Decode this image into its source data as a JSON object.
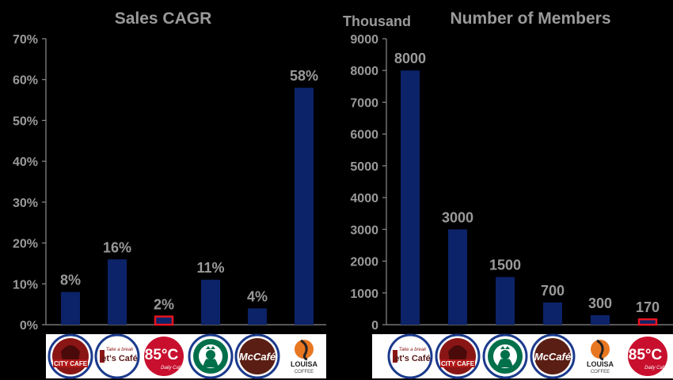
{
  "chart_data": [
    {
      "type": "bar",
      "title": "Sales CAGR",
      "unit": "",
      "categories": [
        "City Cafe",
        "Let's Cafe",
        "85°C",
        "Starbucks",
        "McCafe",
        "Louisa Coffee"
      ],
      "values": [
        8,
        16,
        2,
        11,
        4,
        58
      ],
      "data_labels": [
        "8%",
        "16%",
        "2%",
        "11%",
        "4%",
        "58%"
      ],
      "highlight_index": 2,
      "ylim": [
        0,
        70
      ],
      "yticks": [
        0,
        10,
        20,
        30,
        40,
        50,
        60,
        70
      ],
      "ytick_labels": [
        "0%",
        "10%",
        "20%",
        "30%",
        "40%",
        "50%",
        "60%",
        "70%"
      ],
      "grid": false,
      "legend": "none"
    },
    {
      "type": "bar",
      "title": "Number of Members",
      "unit": "Thousand",
      "categories": [
        "Let's Cafe",
        "City Cafe",
        "Starbucks",
        "McCafe",
        "Louisa Coffee",
        "85°C"
      ],
      "values": [
        8000,
        3000,
        1500,
        700,
        300,
        170
      ],
      "data_labels": [
        "8000",
        "3000",
        "1500",
        "700",
        "300",
        "170"
      ],
      "highlight_index": 5,
      "ylim": [
        0,
        9000
      ],
      "yticks": [
        0,
        1000,
        2000,
        3000,
        4000,
        5000,
        6000,
        7000,
        8000,
        9000
      ],
      "ytick_labels": [
        "0",
        "1000",
        "2000",
        "3000",
        "4000",
        "5000",
        "6000",
        "7000",
        "8000",
        "9000"
      ],
      "grid": false,
      "legend": "none"
    }
  ],
  "logos": {
    "city_cafe": "CITY CAFE",
    "lets_cafe_tag": "Take a break",
    "lets_cafe": "et's Café",
    "c85": "85°C",
    "c85_sub": "Daily Café",
    "mccafe": "McCafé",
    "louisa": "LOUISA",
    "louisa_sub": "COFFEE"
  },
  "colors": {
    "bar": "#0c2369",
    "highlight": "#e8141e",
    "axis": "#8c8c8c",
    "text": "#9a9a9a",
    "background": "#000000"
  }
}
